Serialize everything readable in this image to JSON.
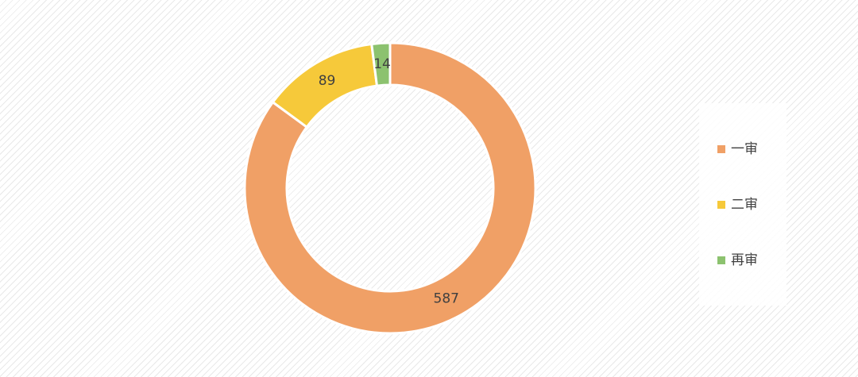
{
  "chart_data": {
    "type": "donut",
    "categories": [
      "一审",
      "二审",
      "再审"
    ],
    "values": [
      587,
      89,
      14
    ],
    "colors": [
      "#f0a066",
      "#f6c93a",
      "#8cc26f"
    ]
  }
}
